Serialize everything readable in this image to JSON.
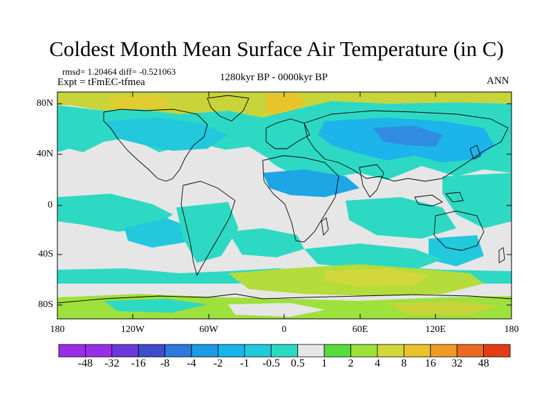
{
  "title": "Coldest Month Mean Surface Air Temperature (in C)",
  "stats": "rmsd= 1.20464 diff= -0.521063",
  "experiment": "Expt = tFmEC-tfmea",
  "period": "1280kyr BP - 0000kyr BP",
  "season": "ANN",
  "lat_labels": [
    "80N",
    "40N",
    "0",
    "40S",
    "80S"
  ],
  "lon_labels": [
    "180",
    "120W",
    "60W",
    "0",
    "60E",
    "120E",
    "180"
  ],
  "colorbar": {
    "labels": [
      "-48",
      "-32",
      "-16",
      "-8",
      "-4",
      "-2",
      "-1",
      "-0.5",
      "0.5",
      "1",
      "2",
      "4",
      "8",
      "16",
      "32",
      "48"
    ],
    "colors": [
      "#9a2ee6",
      "#6a3ad8",
      "#3f4ccc",
      "#2f78dc",
      "#1c9ae6",
      "#18b4ec",
      "#22c8dc",
      "#2ed9c4",
      "#e6e6e6",
      "#58dc3c",
      "#9ee03c",
      "#d2d83c",
      "#e8c42a",
      "#ee9a24",
      "#ea6a20",
      "#e23c14"
    ]
  }
}
